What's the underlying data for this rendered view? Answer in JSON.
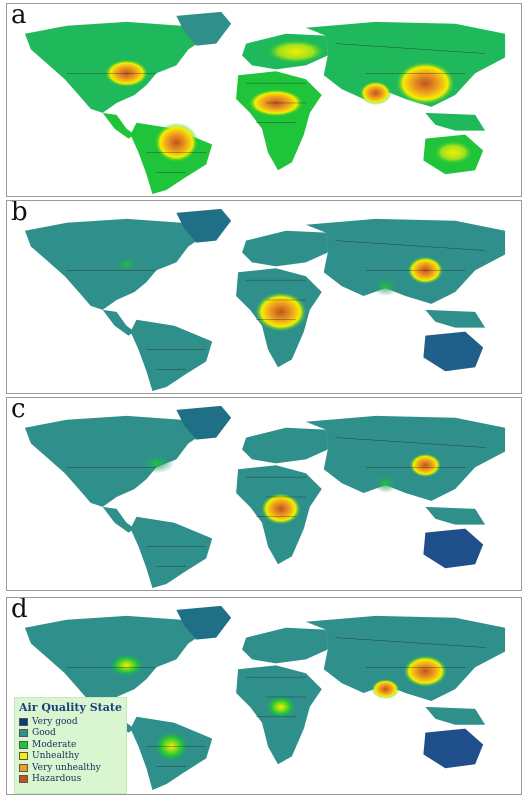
{
  "panels": [
    {
      "label": "a"
    },
    {
      "label": "b"
    },
    {
      "label": "c"
    },
    {
      "label": "d"
    }
  ],
  "legend": {
    "title": "Air Quality State",
    "items": [
      {
        "label": "Very good",
        "color": "#0b3b7a"
      },
      {
        "label": "Good",
        "color": "#2f8f8a"
      },
      {
        "label": "Moderate",
        "color": "#1fc43a"
      },
      {
        "label": "Unhealthy",
        "color": "#f4f000"
      },
      {
        "label": "Very unhealthy",
        "color": "#f0a020"
      },
      {
        "label": "Hazardous",
        "color": "#c0531f"
      }
    ]
  },
  "colors": {
    "ocean": "#ffffff",
    "good": "#2f8f8a",
    "very_good": "#0b3b7a",
    "moderate": "#1fc43a",
    "unhealthy": "#f4f000",
    "very_unhealthy": "#f0a020",
    "hazardous": "#c0531f",
    "border": "#222222"
  }
}
